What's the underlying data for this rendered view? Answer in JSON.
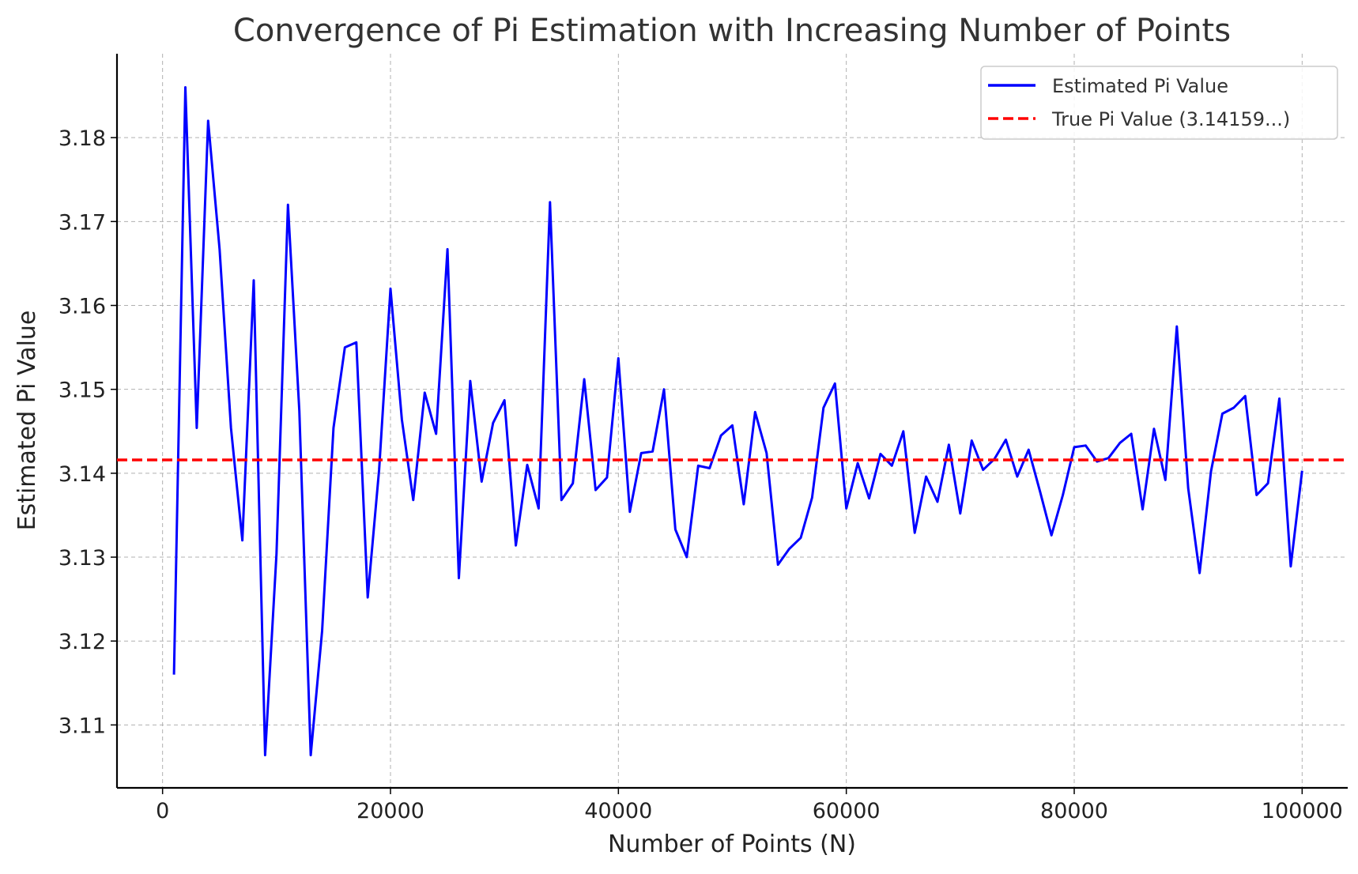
{
  "chart_data": {
    "type": "line",
    "title": "Convergence of Pi Estimation with Increasing Number of Points",
    "xlabel": "Number of Points (N)",
    "ylabel": "Estimated Pi Value",
    "xlim": [
      -4000,
      104000
    ],
    "ylim": [
      3.1025,
      3.19
    ],
    "xticks": [
      0,
      20000,
      40000,
      60000,
      80000,
      100000
    ],
    "xtick_labels": [
      "0",
      "20000",
      "40000",
      "60000",
      "80000",
      "100000"
    ],
    "yticks": [
      3.11,
      3.12,
      3.13,
      3.14,
      3.15,
      3.16,
      3.17,
      3.18
    ],
    "ytick_labels": [
      "3.11",
      "3.12",
      "3.13",
      "3.14",
      "3.15",
      "3.16",
      "3.17",
      "3.18"
    ],
    "grid": true,
    "legend_position": "top-right",
    "x": [
      1000,
      2000,
      3000,
      4000,
      5000,
      6000,
      7000,
      8000,
      9000,
      10000,
      11000,
      12000,
      13000,
      14000,
      15000,
      16000,
      17000,
      18000,
      19000,
      20000,
      21000,
      22000,
      23000,
      24000,
      25000,
      26000,
      27000,
      28000,
      29000,
      30000,
      31000,
      32000,
      33000,
      34000,
      35000,
      36000,
      37000,
      38000,
      39000,
      40000,
      41000,
      42000,
      43000,
      44000,
      45000,
      46000,
      47000,
      48000,
      49000,
      50000,
      51000,
      52000,
      53000,
      54000,
      55000,
      56000,
      57000,
      58000,
      59000,
      60000,
      61000,
      62000,
      63000,
      64000,
      65000,
      66000,
      67000,
      68000,
      69000,
      70000,
      71000,
      72000,
      73000,
      74000,
      75000,
      76000,
      77000,
      78000,
      79000,
      80000,
      81000,
      82000,
      83000,
      84000,
      85000,
      86000,
      87000,
      88000,
      89000,
      90000,
      91000,
      92000,
      93000,
      94000,
      95000,
      96000,
      97000,
      98000,
      99000,
      100000
    ],
    "series": [
      {
        "name": "Estimated Pi Value",
        "color": "#0000ff",
        "style": "solid",
        "values": [
          3.116,
          3.186,
          3.1454,
          3.182,
          3.1667,
          3.1454,
          3.132,
          3.163,
          3.1064,
          3.1304,
          3.172,
          3.1474,
          3.1064,
          3.1212,
          3.1454,
          3.155,
          3.1556,
          3.1252,
          3.1404,
          3.162,
          3.1464,
          3.1368,
          3.1496,
          3.1447,
          3.1667,
          3.1275,
          3.151,
          3.139,
          3.146,
          3.1487,
          3.1314,
          3.141,
          3.1358,
          3.1723,
          3.1368,
          3.1388,
          3.1512,
          3.138,
          3.1395,
          3.1537,
          3.1354,
          3.1424,
          3.1426,
          3.15,
          3.1333,
          3.13,
          3.1409,
          3.1406,
          3.1445,
          3.1457,
          3.1363,
          3.1473,
          3.1424,
          3.1291,
          3.131,
          3.1323,
          3.1371,
          3.1478,
          3.1507,
          3.1358,
          3.1412,
          3.137,
          3.1423,
          3.1409,
          3.145,
          3.1329,
          3.1396,
          3.1366,
          3.1434,
          3.1352,
          3.1439,
          3.1404,
          3.1417,
          3.144,
          3.1396,
          3.1428,
          3.1378,
          3.1326,
          3.1374,
          3.1431,
          3.1433,
          3.1414,
          3.1418,
          3.1436,
          3.1447,
          3.1357,
          3.1453,
          3.1392,
          3.1575,
          3.1382,
          3.1281,
          3.1402,
          3.1471,
          3.1478,
          3.1492,
          3.1374,
          3.1388,
          3.1489,
          3.1289,
          3.1403
        ]
      },
      {
        "name": "True Pi Value (3.14159...)",
        "color": "#ff0000",
        "style": "dashed",
        "value": 3.14159
      }
    ]
  }
}
